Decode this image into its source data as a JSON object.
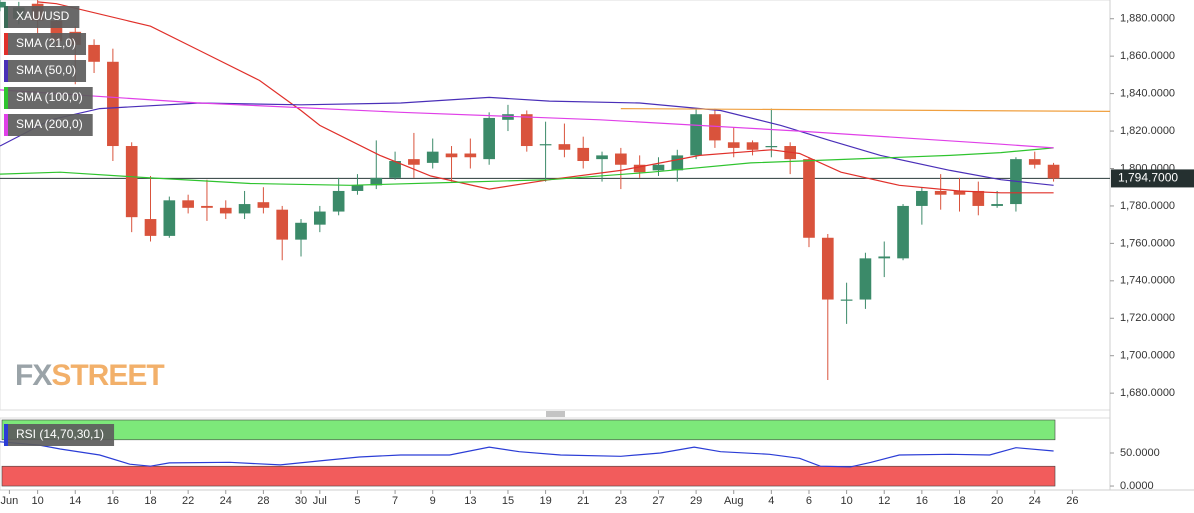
{
  "chart_data": [
    {
      "type": "candlestick",
      "xlim": [
        0,
        59
      ],
      "ylim": [
        1671,
        1890
      ],
      "yticks": [
        {
          "value": 1680,
          "label": "1,680.0000"
        },
        {
          "value": 1700,
          "label": "1,700.0000"
        },
        {
          "value": 1720,
          "label": "1,720.0000"
        },
        {
          "value": 1740,
          "label": "1,740.0000"
        },
        {
          "value": 1760,
          "label": "1,760.0000"
        },
        {
          "value": 1780,
          "label": "1,780.0000"
        },
        {
          "value": 1800,
          "label": "1,800.0000"
        },
        {
          "value": 1820,
          "label": "1,820.0000"
        },
        {
          "value": 1840,
          "label": "1,840.0000"
        },
        {
          "value": 1860,
          "label": "1,860.0000"
        },
        {
          "value": 1880,
          "label": "1,880.0000"
        }
      ],
      "price_line": {
        "value": 1794.7,
        "label": "1,794.7000"
      },
      "logo": [
        "FX",
        "STREET"
      ],
      "up_color": "#3b8a69",
      "down_color": "#d9533c",
      "series": [
        {
          "name": "XAU/USD",
          "color": "#3b6b57",
          "open": [
            1886,
            1880,
            1888,
            1879,
            1873,
            1866,
            1857,
            1812,
            1773,
            1764,
            1783,
            1780,
            1779,
            1776,
            1782,
            1778,
            1762,
            1770,
            1777,
            1788,
            1791,
            1795,
            1805,
            1803,
            1808,
            1808,
            1805,
            1826,
            1829,
            1813,
            1813,
            1811,
            1805,
            1808,
            1802,
            1799,
            1799,
            1807,
            1829,
            1814,
            1814,
            1812,
            1812,
            1805,
            1763,
            1730,
            1730,
            1752,
            1752,
            1780,
            1788,
            1788,
            1788,
            1780,
            1781,
            1805,
            1802
          ],
          "high": [
            1890,
            1889,
            1891,
            1882,
            1876,
            1869,
            1864,
            1814,
            1796,
            1785,
            1786,
            1794,
            1783,
            1788,
            1790,
            1780,
            1773,
            1780,
            1795,
            1797,
            1815,
            1809,
            1819,
            1816,
            1812,
            1816,
            1830,
            1834,
            1831,
            1825,
            1824,
            1817,
            1809,
            1811,
            1807,
            1806,
            1810,
            1832,
            1832,
            1822,
            1815,
            1832,
            1814,
            1806,
            1765,
            1739,
            1755,
            1761,
            1781,
            1790,
            1797,
            1795,
            1793,
            1788,
            1806,
            1809,
            1803
          ],
          "low": [
            1884,
            1877,
            1872,
            1864,
            1845,
            1851,
            1804,
            1766,
            1761,
            1763,
            1776,
            1772,
            1773,
            1773,
            1776,
            1751,
            1753,
            1766,
            1775,
            1786,
            1789,
            1794,
            1795,
            1800,
            1793,
            1800,
            1802,
            1820,
            1809,
            1793,
            1806,
            1800,
            1793,
            1789,
            1795,
            1796,
            1793,
            1805,
            1811,
            1806,
            1807,
            1806,
            1797,
            1758,
            1687,
            1717,
            1725,
            1742,
            1751,
            1770,
            1778,
            1777,
            1775,
            1779,
            1777,
            1800,
            1793
          ],
          "close": [
            1889,
            1886,
            1879,
            1868,
            1866,
            1857,
            1812,
            1774,
            1764,
            1783,
            1779,
            1779,
            1776,
            1781,
            1779,
            1762,
            1771,
            1777,
            1788,
            1791,
            1795,
            1804,
            1802,
            1809,
            1806,
            1806,
            1827,
            1829,
            1812,
            1813,
            1810,
            1804,
            1807,
            1802,
            1798,
            1802,
            1807,
            1829,
            1815,
            1811,
            1810,
            1812,
            1805,
            1763,
            1730,
            1730,
            1752,
            1753,
            1780,
            1788,
            1786,
            1786,
            1780,
            1781,
            1805,
            1802,
            1794.7
          ]
        },
        {
          "name": "SMA (21,0)",
          "color": "#e0302a",
          "x": [
            2,
            3,
            8,
            10.6,
            13.8,
            16,
            17,
            20.2,
            22.9,
            26,
            29.2,
            33,
            37.2,
            41,
            42.5,
            44.7,
            47.8,
            51,
            53.2,
            56
          ],
          "values": [
            1889,
            1888,
            1876,
            1863,
            1847,
            1831,
            1823,
            1807,
            1796,
            1789,
            1794,
            1799,
            1807,
            1810,
            1808,
            1798,
            1791,
            1788,
            1787,
            1787
          ]
        },
        {
          "name": "SMA (50,0)",
          "color": "#4a2fb8",
          "x": [
            0,
            2.7,
            5.3,
            10.6,
            16,
            21.3,
            26,
            29.2,
            34,
            38.3,
            41.5,
            44.1,
            46.8,
            50.5,
            53.2,
            56
          ],
          "values": [
            1812,
            1826,
            1832,
            1835,
            1834,
            1835,
            1838,
            1836,
            1835,
            1831,
            1823,
            1815,
            1807,
            1799,
            1794,
            1791
          ]
        },
        {
          "name": "SMA (100,0)",
          "color": "#2fc42f",
          "x": [
            0,
            3.2,
            8,
            13.3,
            18.6,
            23.9,
            29.2,
            34.6,
            39.9,
            45.2,
            50.5,
            53.2,
            56
          ],
          "values": [
            1797,
            1798,
            1795,
            1792,
            1791,
            1792.5,
            1794,
            1798,
            1803,
            1805,
            1807,
            1808.5,
            1811
          ]
        },
        {
          "name": "SMA (200,0)",
          "color": "#e040e8",
          "x": [
            0,
            10.6,
            21.3,
            31.9,
            42.5,
            53.2,
            56
          ],
          "values": [
            1842,
            1835,
            1830,
            1826,
            1820,
            1813,
            1811
          ]
        },
        {
          "color": "#f0a040",
          "x": [
            33,
            59
          ],
          "values": [
            1832,
            1830.5
          ]
        }
      ]
    },
    {
      "type": "line",
      "xlim": [
        0,
        59
      ],
      "ylim": [
        -6,
        103
      ],
      "yticks": [
        {
          "value": 0,
          "label": "0.0000"
        },
        {
          "value": 50,
          "label": "50.0000"
        }
      ],
      "xticks": [
        {
          "value": 0.5,
          "label": "Jun"
        },
        {
          "value": 2,
          "label": "10"
        },
        {
          "value": 4,
          "label": "14"
        },
        {
          "value": 6,
          "label": "16"
        },
        {
          "value": 8,
          "label": "18"
        },
        {
          "value": 10,
          "label": "22"
        },
        {
          "value": 12,
          "label": "24"
        },
        {
          "value": 14,
          "label": "28"
        },
        {
          "value": 16,
          "label": "30"
        },
        {
          "value": 17,
          "label": "Jul"
        },
        {
          "value": 19,
          "label": "5"
        },
        {
          "value": 21,
          "label": "7"
        },
        {
          "value": 23,
          "label": "9"
        },
        {
          "value": 25,
          "label": "13"
        },
        {
          "value": 27,
          "label": "15"
        },
        {
          "value": 29,
          "label": "19"
        },
        {
          "value": 31,
          "label": "21"
        },
        {
          "value": 33,
          "label": "23"
        },
        {
          "value": 35,
          "label": "27"
        },
        {
          "value": 37,
          "label": "29"
        },
        {
          "value": 39,
          "label": "Aug"
        },
        {
          "value": 41,
          "label": "4"
        },
        {
          "value": 43,
          "label": "6"
        },
        {
          "value": 45,
          "label": "10"
        },
        {
          "value": 47,
          "label": "12"
        },
        {
          "value": 49,
          "label": "16"
        },
        {
          "value": 51,
          "label": "18"
        },
        {
          "value": 53,
          "label": "20"
        },
        {
          "value": 55,
          "label": "24"
        },
        {
          "value": 57,
          "label": "26"
        }
      ],
      "bands": [
        {
          "from": 70,
          "to": 100,
          "color": "#7de87a"
        },
        {
          "from": 0,
          "to": 30,
          "color": "#f25c5c"
        }
      ],
      "series": [
        {
          "name": "RSI (14,70,30,1)",
          "color": "#2b3dd6",
          "x": [
            0,
            2.1,
            3.2,
            5.3,
            6.9,
            8,
            9,
            12.2,
            14.9,
            17,
            19.1,
            21.3,
            23.9,
            26,
            27.6,
            29.8,
            33,
            35.1,
            36.9,
            38.3,
            40.9,
            42.5,
            43.6,
            45.2,
            46.3,
            47.8,
            50.5,
            52.6,
            54,
            56
          ],
          "values": [
            67,
            62,
            56,
            47,
            33,
            30,
            35,
            36,
            32,
            38,
            44,
            47,
            47,
            59,
            52,
            47,
            45,
            50,
            59,
            52,
            48,
            42,
            30,
            29,
            36,
            47,
            48,
            47,
            58,
            53
          ]
        }
      ]
    }
  ]
}
